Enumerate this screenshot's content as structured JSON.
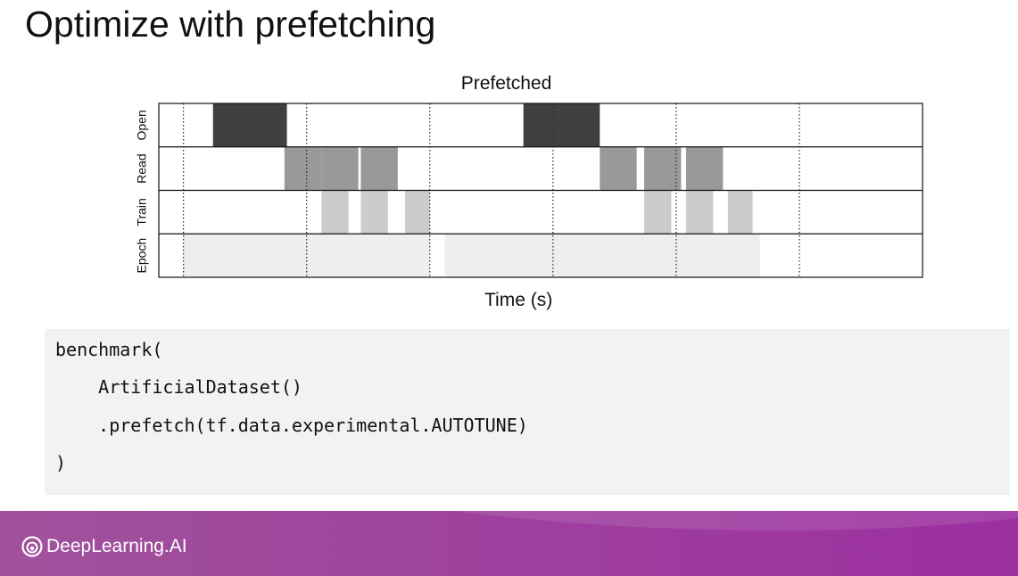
{
  "slide": {
    "title": "Optimize with prefetching"
  },
  "chart_data": {
    "type": "timeline",
    "title": "Prefetched",
    "xlabel": "Time (s)",
    "rows": [
      "Open",
      "Read",
      "Train",
      "Epoch"
    ],
    "x_range": [
      0,
      31
    ],
    "gridlines": [
      1,
      6,
      11,
      16,
      21,
      26
    ],
    "segments": {
      "Open": [
        [
          2.2,
          5.2
        ],
        [
          14.8,
          17.9
        ]
      ],
      "Read": [
        [
          5.1,
          6.6
        ],
        [
          6.6,
          8.1
        ],
        [
          8.2,
          9.7
        ],
        [
          17.9,
          19.4
        ],
        [
          19.7,
          21.2
        ],
        [
          21.4,
          22.9
        ]
      ],
      "Train": [
        [
          6.6,
          7.7
        ],
        [
          8.2,
          9.3
        ],
        [
          10.0,
          11.0
        ],
        [
          19.7,
          20.8
        ],
        [
          21.4,
          22.5
        ],
        [
          23.1,
          24.1
        ]
      ],
      "Epoch": [
        [
          1.0,
          11.0
        ],
        [
          11.6,
          24.4
        ]
      ]
    },
    "colors": {
      "Open": "#404040",
      "Read": "#999999",
      "Train": "#cccccc",
      "Epoch": "#eeeeee"
    }
  },
  "code": {
    "lines": [
      "benchmark(",
      "    ArtificialDataset()",
      "    .prefetch(tf.data.experimental.AUTOTUNE)",
      ")"
    ]
  },
  "footer": {
    "brand": "DeepLearning.AI",
    "gradient_start": "#a0529c",
    "gradient_end": "#9c2fa0"
  }
}
